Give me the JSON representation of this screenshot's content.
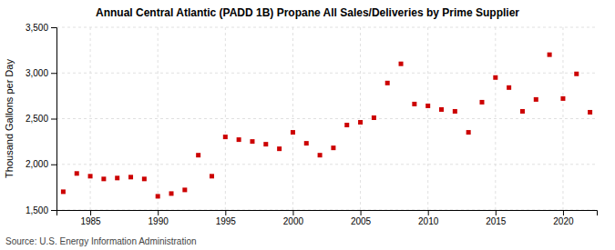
{
  "chart_data": {
    "type": "scatter",
    "title": "Annual Central Atlantic (PADD 1B) Propane All Sales/Deliveries by Prime Supplier",
    "ylabel": "Thousand Gallons per Day",
    "source": "Source: U.S. Energy Information Administration",
    "color": "#cc0000",
    "marker": "square",
    "grid": true,
    "xlim": [
      1982.5,
      2022.5
    ],
    "xticks": [
      1985,
      1990,
      1995,
      2000,
      2005,
      2010,
      2015,
      2020
    ],
    "ylim": [
      1500,
      3500
    ],
    "yticks": [
      {
        "value": 1500,
        "label": "1,500"
      },
      {
        "value": 2000,
        "label": "2,000"
      },
      {
        "value": 2500,
        "label": "2,500"
      },
      {
        "value": 3000,
        "label": "3,000"
      },
      {
        "value": 3500,
        "label": "3,500"
      }
    ],
    "x": [
      1983,
      1984,
      1985,
      1986,
      1987,
      1988,
      1989,
      1990,
      1991,
      1992,
      1993,
      1994,
      1995,
      1996,
      1997,
      1998,
      1999,
      2000,
      2001,
      2002,
      2003,
      2004,
      2005,
      2006,
      2007,
      2008,
      2009,
      2010,
      2011,
      2012,
      2013,
      2014,
      2015,
      2016,
      2017,
      2018,
      2019,
      2020,
      2021,
      2022
    ],
    "values": [
      1700,
      1900,
      1870,
      1840,
      1850,
      1860,
      1840,
      1650,
      1680,
      1720,
      2100,
      1870,
      2300,
      2270,
      2250,
      2220,
      2170,
      2350,
      2230,
      2100,
      2180,
      2430,
      2460,
      2510,
      2890,
      3100,
      2660,
      2640,
      2600,
      2580,
      2350,
      2680,
      2950,
      2840,
      2580,
      2710,
      3200,
      2720,
      2990,
      2570
    ]
  }
}
